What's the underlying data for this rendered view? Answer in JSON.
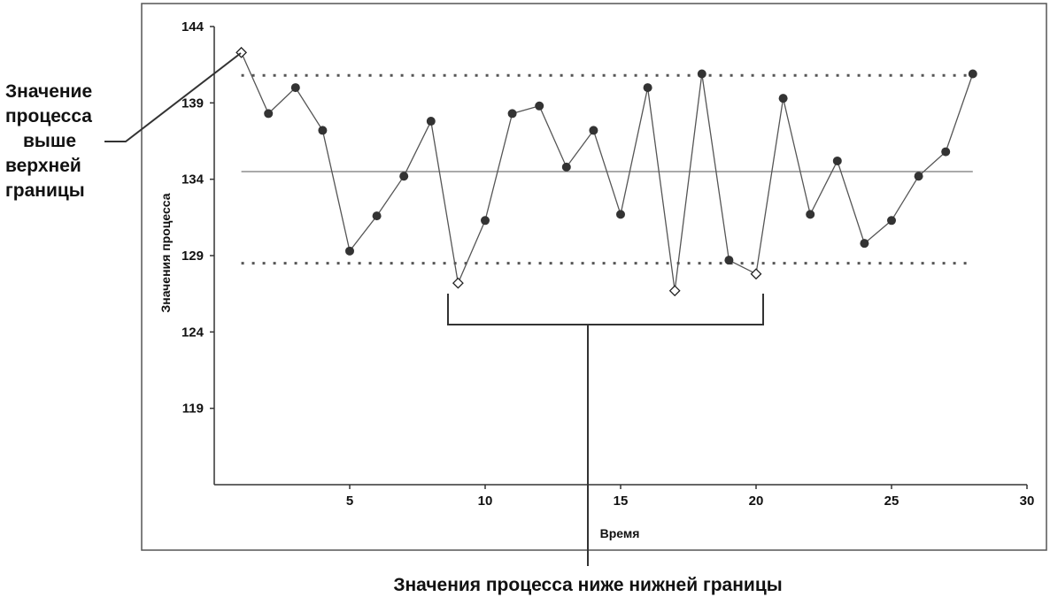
{
  "chart_data": {
    "type": "line",
    "xlabel": "Время",
    "ylabel": "Значения процесса",
    "xlim": [
      0,
      30
    ],
    "ylim": [
      114,
      144
    ],
    "x_ticks": [
      5,
      10,
      15,
      20,
      25,
      30
    ],
    "y_ticks": [
      119,
      124,
      129,
      134,
      139,
      144
    ],
    "grid": false,
    "center_line": 134.5,
    "upper_limit": 140.8,
    "lower_limit": 128.5,
    "series": [
      {
        "x": [
          1,
          2,
          3,
          4,
          5,
          6,
          7,
          8,
          9,
          10,
          11,
          12,
          13,
          14,
          15,
          16,
          17,
          18,
          19,
          20,
          21,
          22,
          23,
          24,
          25,
          26,
          27,
          28
        ],
        "values": [
          142.3,
          138.3,
          140.0,
          137.2,
          129.3,
          131.6,
          134.2,
          137.8,
          127.2,
          131.3,
          138.3,
          138.8,
          134.8,
          137.2,
          131.7,
          140.0,
          126.7,
          140.9,
          128.7,
          127.8,
          139.3,
          131.7,
          135.2,
          129.8,
          131.3,
          134.2,
          135.8,
          140.9
        ],
        "out_of_control": [
          1,
          9,
          17,
          20
        ]
      }
    ],
    "annotations": {
      "upper": [
        "Значение",
        "процесса",
        "выше",
        "верхней",
        "границы"
      ],
      "lower": "Значения процесса ниже нижней границы"
    }
  }
}
